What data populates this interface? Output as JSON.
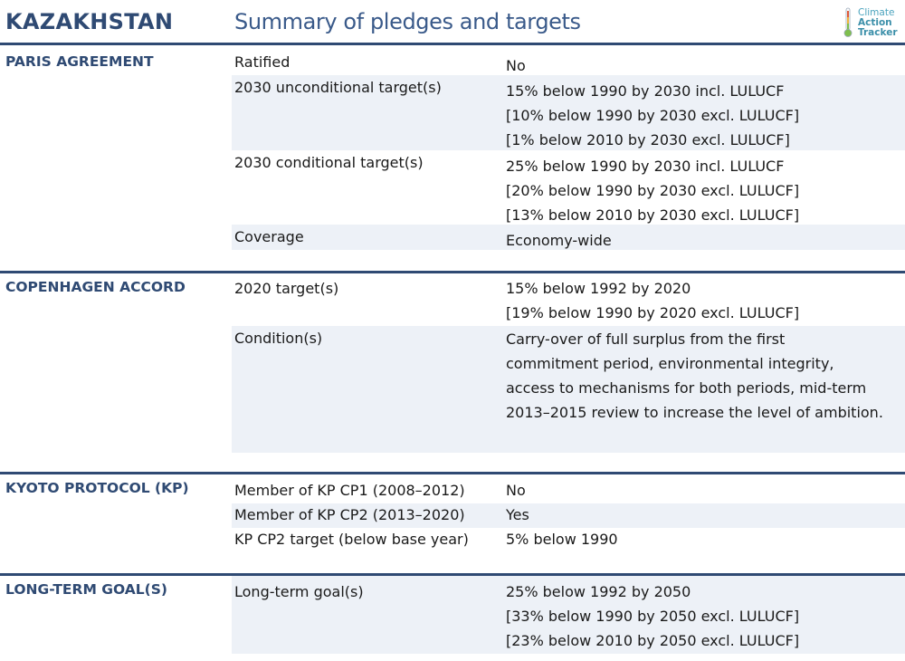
{
  "header": {
    "country": "KAZAKHSTAN",
    "subtitle": "Summary of pledges and targets",
    "logo_lines": [
      "Climate",
      "Action",
      "Tracker"
    ]
  },
  "sections": {
    "paris": {
      "title": "PARIS AGREEMENT",
      "rows": [
        {
          "label": "Ratified",
          "values": [
            "No"
          ]
        },
        {
          "label": "2030 unconditional target(s)",
          "values": [
            "15% below 1990 by 2030 incl. LULUCF",
            "[10% below 1990 by 2030 excl. LULUCF]",
            "[1% below 2010 by 2030 excl. LULUCF]"
          ]
        },
        {
          "label": "2030 conditional target(s)",
          "values": [
            "25% below 1990 by 2030 incl. LULUCF",
            "[20% below 1990 by 2030 excl. LULUCF]",
            "[13% below 2010 by 2030 excl. LULUCF]"
          ]
        },
        {
          "label": "Coverage",
          "values": [
            "Economy-wide"
          ]
        }
      ]
    },
    "copenhagen": {
      "title": "COPENHAGEN ACCORD",
      "rows": [
        {
          "label": "2020 target(s)",
          "values": [
            "15% below 1992 by 2020",
            "[19% below 1990 by 2020 excl. LULUCF]"
          ]
        },
        {
          "label": "Condition(s)",
          "values": [
            "Carry-over of full surplus from the first",
            "commitment period, environmental integrity,",
            "access to mechanisms for both periods, mid-term",
            "2013–2015 review to increase the level of ambition."
          ]
        }
      ]
    },
    "kyoto": {
      "title": "KYOTO PROTOCOL (KP)",
      "rows": [
        {
          "label": "Member of KP CP1 (2008–2012)",
          "values": [
            "No"
          ]
        },
        {
          "label": "Member of KP CP2 (2013–2020)",
          "values": [
            "Yes"
          ]
        },
        {
          "label": "KP CP2 target (below base year)",
          "values": [
            "5% below 1990"
          ]
        }
      ]
    },
    "longterm": {
      "title": "LONG-TERM GOAL(S)",
      "rows": [
        {
          "label": "Long-term goal(s)",
          "values": [
            "25% below 1992 by 2050",
            "[33% below 1990 by 2050 excl. LULUCF]",
            "[23% below 2010 by 2050 excl. LULUCF]"
          ]
        }
      ]
    }
  },
  "colors": {
    "navy": "#2f4a73",
    "row_shade": "#edf1f7",
    "logo_teal": "#4aa3bd"
  }
}
